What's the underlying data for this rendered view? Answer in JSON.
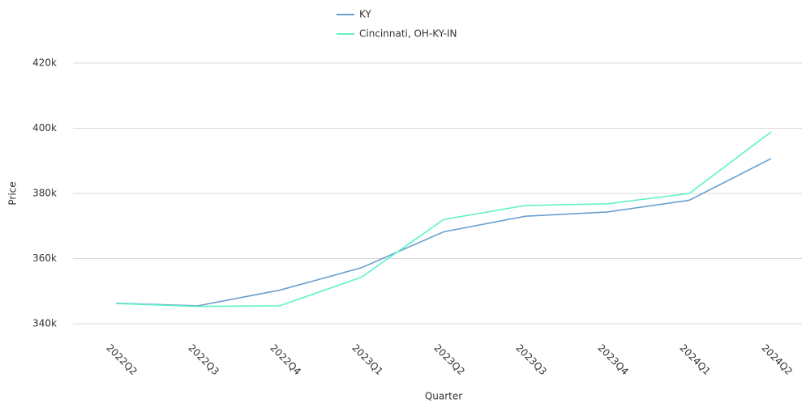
{
  "chart_data": {
    "type": "line",
    "x_label": "Quarter",
    "y_label": "Price",
    "categories": [
      "2022Q2",
      "2022Q3",
      "2022Q4",
      "2023Q1",
      "2023Q2",
      "2023Q3",
      "2023Q4",
      "2024Q1",
      "2024Q2"
    ],
    "series": [
      {
        "name": "KY",
        "color": "#6a9fcf",
        "values": [
          346300,
          345500,
          350300,
          357200,
          368200,
          373000,
          374300,
          377900,
          390700
        ]
      },
      {
        "name": "Cincinnati, OH-KY-IN",
        "color": "#5ef2c6",
        "values": [
          346200,
          345300,
          345500,
          354300,
          372000,
          376300,
          376800,
          380000,
          398900
        ]
      }
    ],
    "ylim": [
      340000,
      420000
    ],
    "yticks": [
      {
        "value": 340000,
        "label": "340k"
      },
      {
        "value": 360000,
        "label": "360k"
      },
      {
        "value": 380000,
        "label": "380k"
      },
      {
        "value": 400000,
        "label": "400k"
      },
      {
        "value": 420000,
        "label": "420k"
      }
    ],
    "grid": true,
    "legend": "top"
  }
}
